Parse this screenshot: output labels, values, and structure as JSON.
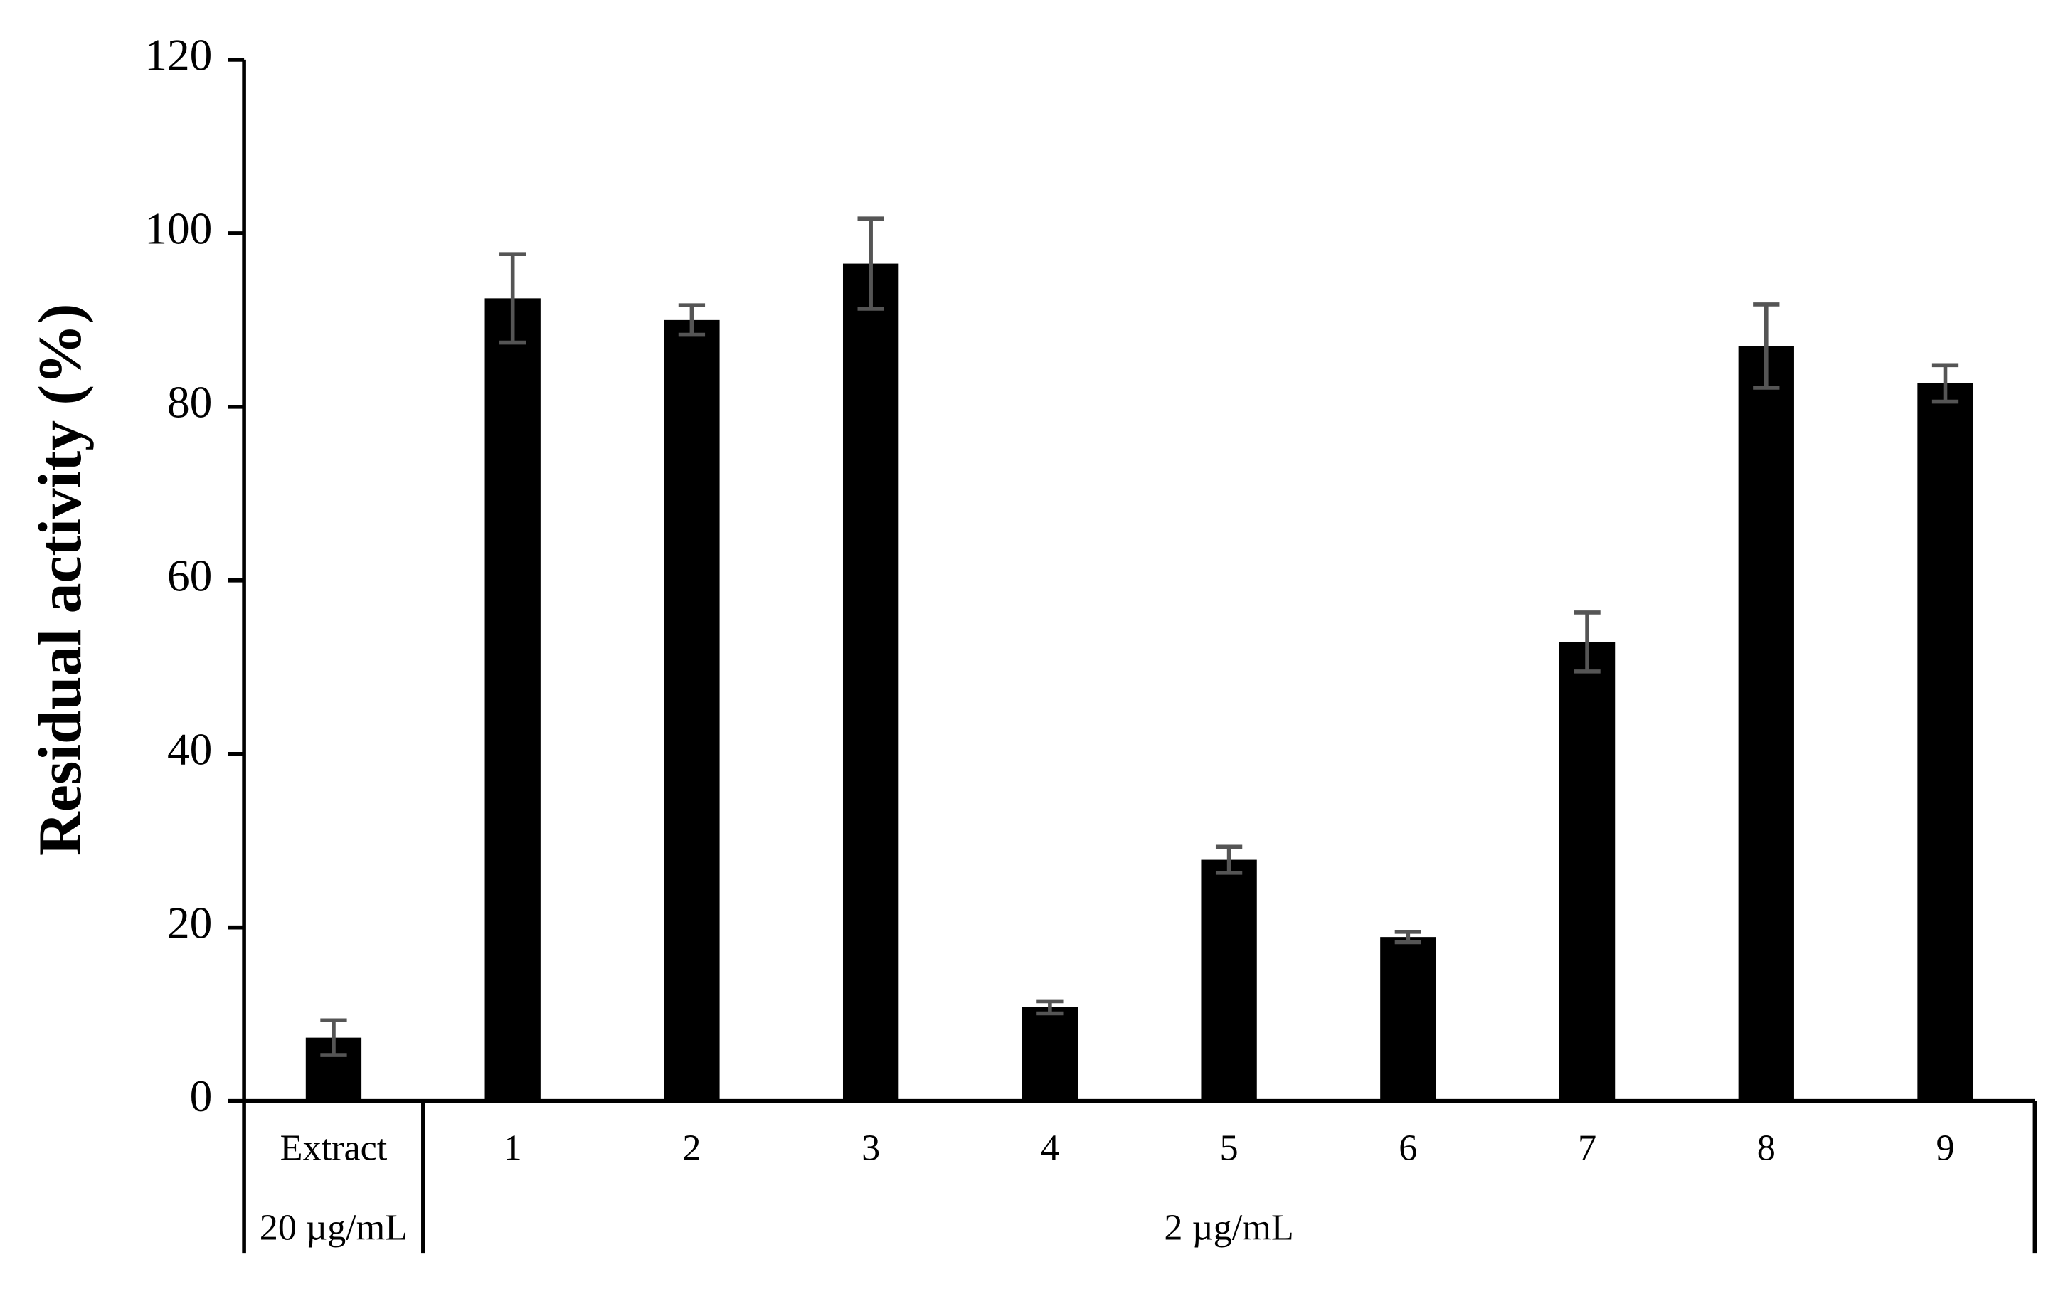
{
  "chart_data": {
    "type": "bar",
    "y_label": "Residual activity (%)",
    "categories": [
      "Extract",
      "1",
      "2",
      "3",
      "4",
      "5",
      "6",
      "7",
      "8",
      "9"
    ],
    "values": [
      7.3,
      92.5,
      90,
      96.5,
      10.8,
      27.8,
      18.9,
      52.9,
      87,
      82.7
    ],
    "errors": [
      2,
      5.1,
      1.7,
      5.2,
      0.7,
      1.5,
      0.6,
      3.4,
      4.8,
      2.1
    ],
    "group_labels": [
      "20 µg/mL",
      "2 µg/mL"
    ],
    "group_sizes": [
      1,
      9
    ],
    "color": "#000000",
    "error_color": "#555555",
    "ylim": [
      0,
      120
    ],
    "yticks": [
      0,
      20,
      40,
      60,
      80,
      100,
      120
    ],
    "grid": false
  }
}
